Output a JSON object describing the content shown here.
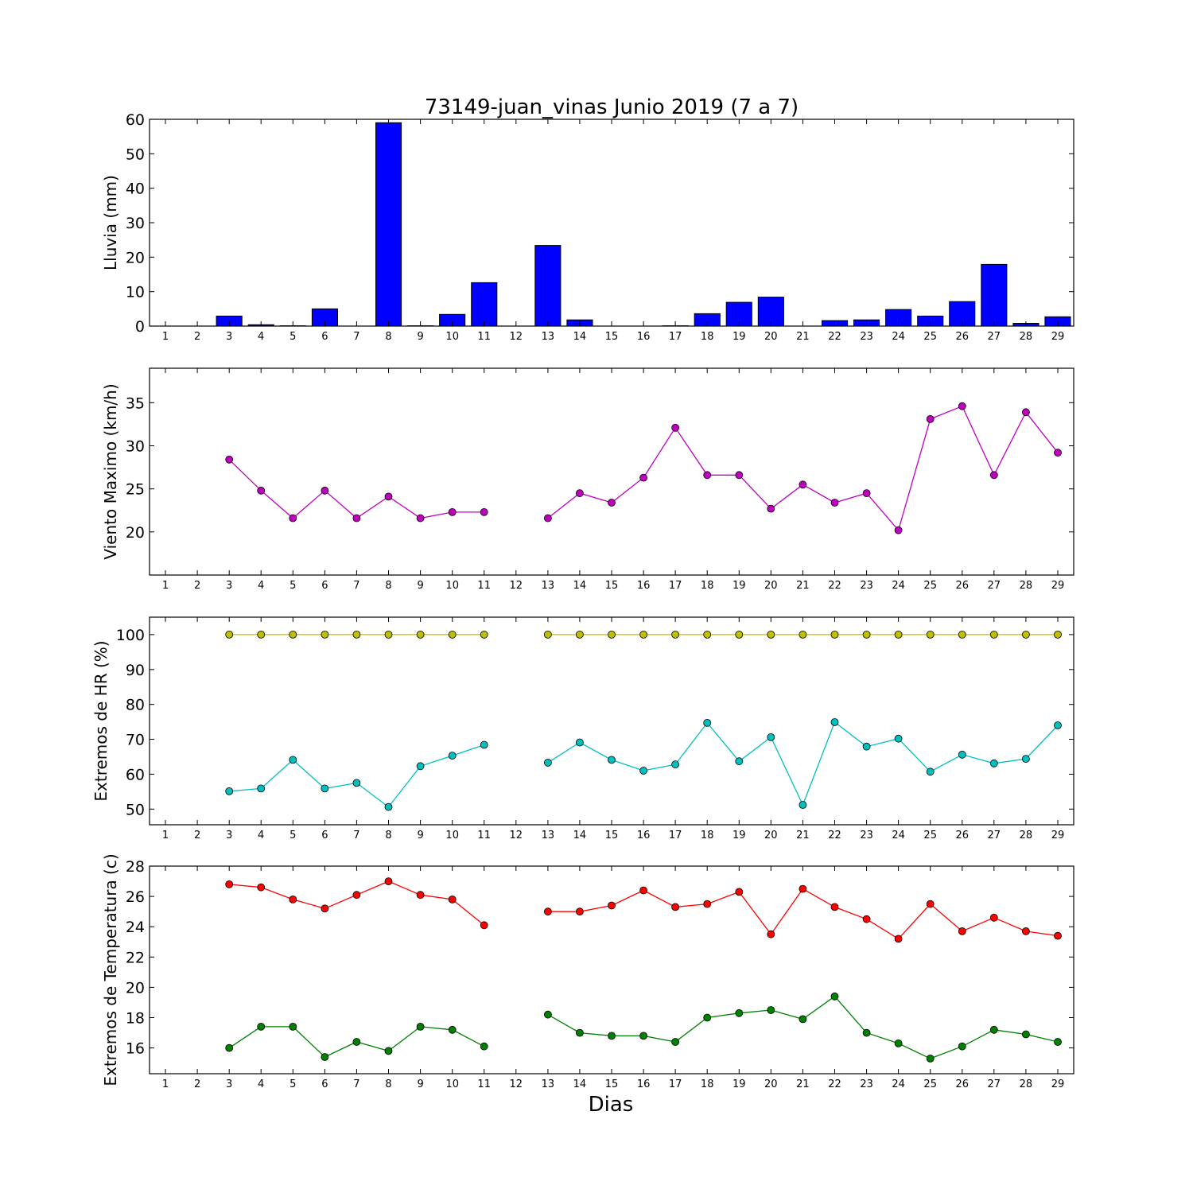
{
  "chart_data": [
    {
      "type": "bar",
      "title": "73149-juan_vinas Junio 2019  (7 a 7)",
      "ylabel": "Lluvia (mm)",
      "xlabel": "",
      "x": [
        1,
        2,
        3,
        4,
        5,
        6,
        7,
        8,
        9,
        10,
        11,
        12,
        13,
        14,
        15,
        16,
        17,
        18,
        19,
        20,
        21,
        22,
        23,
        24,
        25,
        26,
        27,
        28,
        29
      ],
      "ylim": [
        0,
        60
      ],
      "yticks": [
        0,
        10,
        20,
        30,
        40,
        50,
        60
      ],
      "series": [
        {
          "color": "#0000ff",
          "values": [
            0,
            0,
            2.9,
            0.4,
            0.1,
            5.0,
            0,
            59.0,
            0.1,
            3.4,
            12.6,
            0,
            23.4,
            1.8,
            0,
            0,
            0.1,
            3.6,
            6.9,
            8.4,
            0,
            1.6,
            1.8,
            4.8,
            2.9,
            7.1,
            17.9,
            0.8,
            2.7
          ]
        }
      ]
    },
    {
      "type": "line",
      "ylabel": "Viento Maximo (km/h)",
      "xlabel": "",
      "x": [
        1,
        2,
        3,
        4,
        5,
        6,
        7,
        8,
        9,
        10,
        11,
        12,
        13,
        14,
        15,
        16,
        17,
        18,
        19,
        20,
        21,
        22,
        23,
        24,
        25,
        26,
        27,
        28,
        29
      ],
      "ylim": [
        15,
        39
      ],
      "yticks": [
        20,
        25,
        30,
        35
      ],
      "series": [
        {
          "color": "#bf00bf",
          "values": [
            null,
            null,
            28.4,
            24.8,
            21.6,
            24.8,
            21.6,
            24.1,
            21.6,
            22.3,
            22.3,
            null,
            21.6,
            24.5,
            23.4,
            26.3,
            32.1,
            26.6,
            26.6,
            22.7,
            25.5,
            23.4,
            24.5,
            20.2,
            33.1,
            34.6,
            26.6,
            33.9,
            29.2
          ]
        }
      ]
    },
    {
      "type": "line",
      "ylabel": "Extremos de HR (%)",
      "xlabel": "",
      "x": [
        1,
        2,
        3,
        4,
        5,
        6,
        7,
        8,
        9,
        10,
        11,
        12,
        13,
        14,
        15,
        16,
        17,
        18,
        19,
        20,
        21,
        22,
        23,
        24,
        25,
        26,
        27,
        28,
        29
      ],
      "ylim": [
        45.5,
        105
      ],
      "yticks": [
        50,
        60,
        70,
        80,
        90,
        100
      ],
      "series": [
        {
          "color": "#bfbf00",
          "values": [
            null,
            null,
            100,
            100,
            100,
            100,
            100,
            100,
            100,
            100,
            100,
            null,
            100,
            100,
            100,
            100,
            100,
            100,
            100,
            100,
            100,
            100,
            100,
            100,
            100,
            100,
            100,
            100,
            100
          ]
        },
        {
          "color": "#00bfbf",
          "values": [
            null,
            null,
            55.1,
            55.9,
            64.1,
            55.9,
            57.5,
            50.6,
            62.3,
            65.3,
            68.4,
            null,
            63.3,
            69.1,
            64.1,
            61.0,
            62.8,
            74.7,
            63.7,
            70.6,
            51.2,
            74.9,
            67.9,
            70.2,
            60.7,
            65.6,
            63.1,
            64.4,
            74.0
          ]
        }
      ]
    },
    {
      "type": "line",
      "ylabel": "Extremos de Temperatura (c)",
      "xlabel": "Dias",
      "x": [
        1,
        2,
        3,
        4,
        5,
        6,
        7,
        8,
        9,
        10,
        11,
        12,
        13,
        14,
        15,
        16,
        17,
        18,
        19,
        20,
        21,
        22,
        23,
        24,
        25,
        26,
        27,
        28,
        29
      ],
      "ylim": [
        14.3,
        28
      ],
      "yticks": [
        16,
        18,
        20,
        22,
        24,
        26,
        28
      ],
      "series": [
        {
          "color": "#ff0000",
          "values": [
            null,
            null,
            26.8,
            26.6,
            25.8,
            25.2,
            26.1,
            27.0,
            26.1,
            25.8,
            24.1,
            null,
            25.0,
            25.0,
            25.4,
            26.4,
            25.3,
            25.5,
            26.3,
            23.5,
            26.5,
            25.3,
            24.5,
            23.2,
            25.5,
            23.7,
            24.6,
            23.7,
            23.4
          ]
        },
        {
          "color": "#008000",
          "values": [
            null,
            null,
            16.0,
            17.4,
            17.4,
            15.4,
            16.4,
            15.8,
            17.4,
            17.2,
            16.1,
            null,
            18.2,
            17.0,
            16.8,
            16.8,
            16.4,
            18.0,
            18.3,
            18.5,
            17.9,
            19.4,
            17.0,
            16.3,
            15.3,
            16.1,
            17.2,
            16.9,
            16.4
          ]
        }
      ]
    }
  ]
}
